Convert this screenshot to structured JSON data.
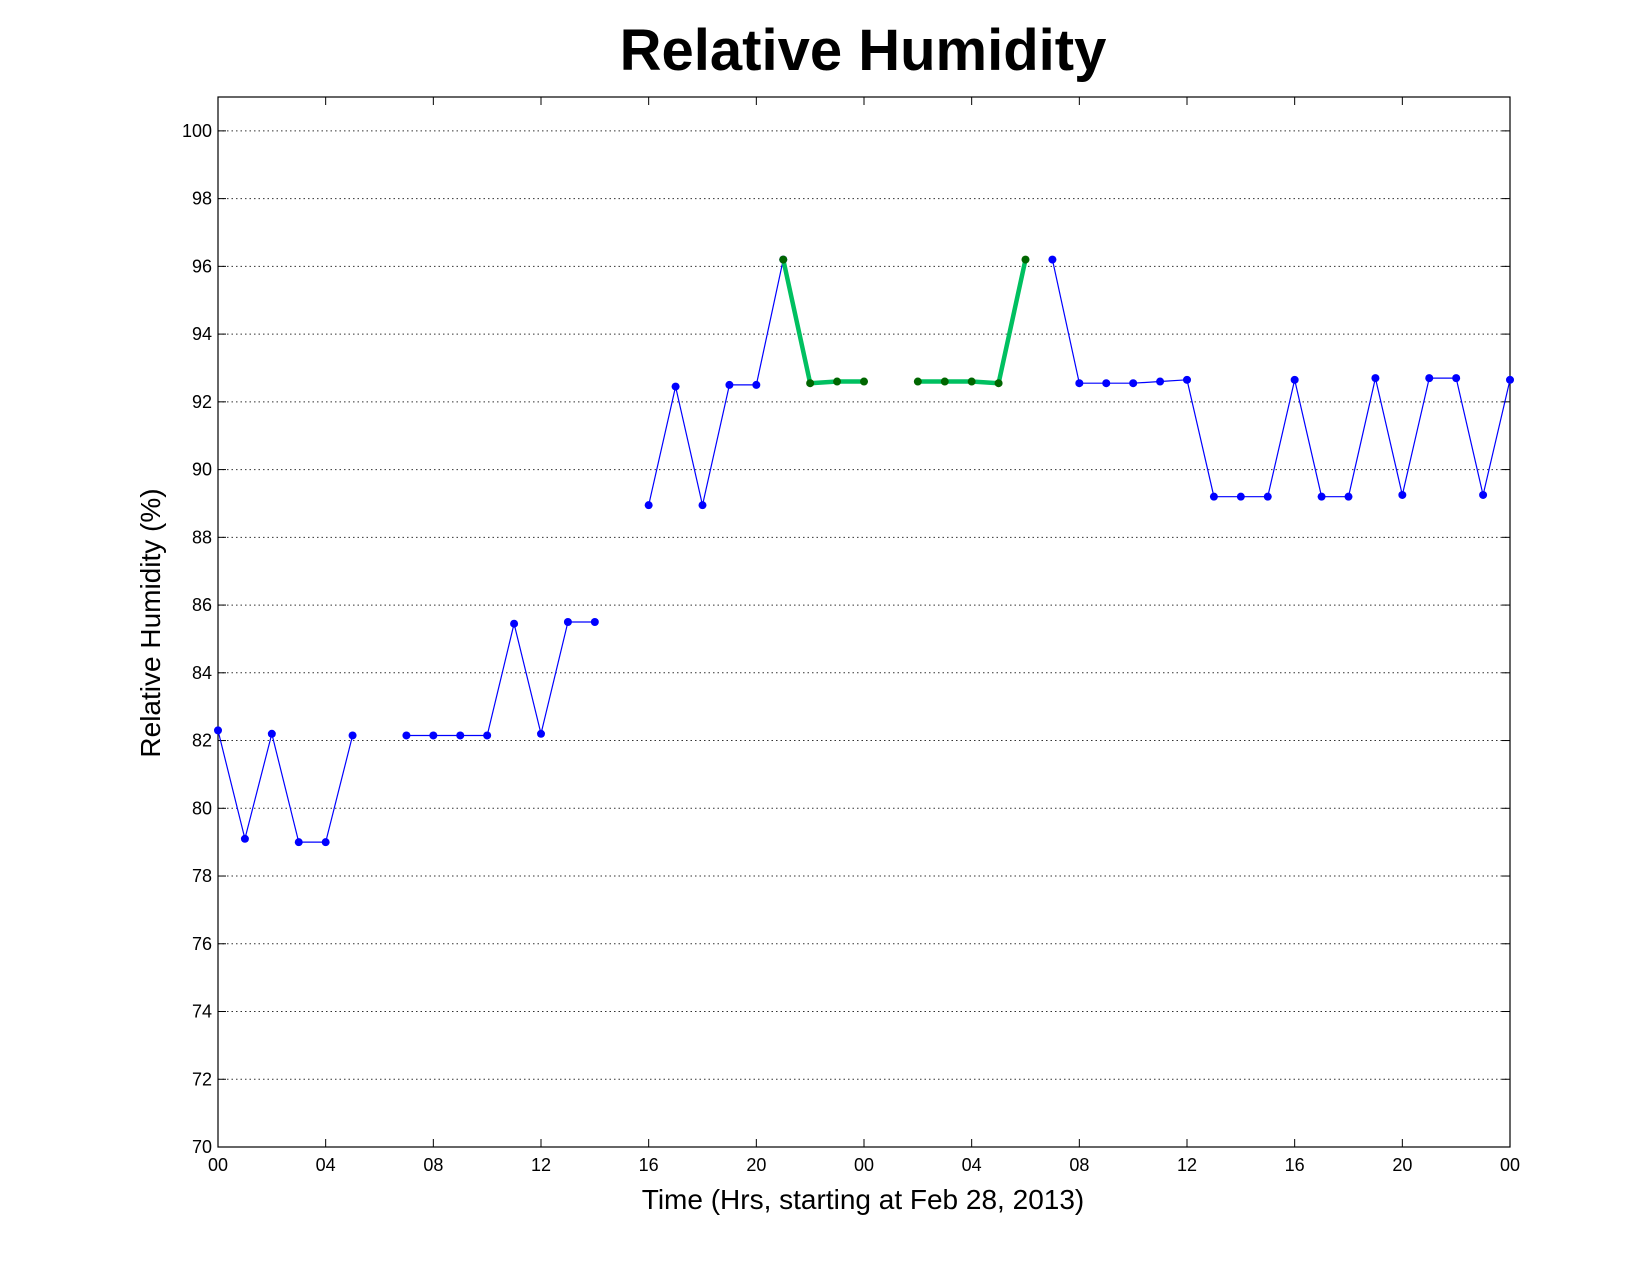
{
  "chart_data": {
    "type": "line",
    "title": "Relative Humidity",
    "xlabel": "Time (Hrs, starting at Feb 28, 2013)",
    "ylabel": "Relative Humidity (%)",
    "xlim": [
      0,
      48
    ],
    "ylim": [
      70,
      101
    ],
    "grid": true,
    "x_ticks": [
      0,
      4,
      8,
      12,
      16,
      20,
      24,
      28,
      32,
      36,
      40,
      44,
      48
    ],
    "x_tick_labels": [
      "00",
      "04",
      "08",
      "12",
      "16",
      "20",
      "00",
      "04",
      "08",
      "12",
      "16",
      "20",
      "00"
    ],
    "y_ticks": [
      70,
      72,
      74,
      76,
      78,
      80,
      82,
      84,
      86,
      88,
      90,
      92,
      94,
      96,
      98,
      100
    ],
    "y_tick_labels": [
      "70",
      "72",
      "74",
      "76",
      "78",
      "80",
      "82",
      "84",
      "86",
      "88",
      "90",
      "92",
      "94",
      "96",
      "98",
      "100"
    ],
    "colors": {
      "primary": "#0000ff",
      "highlight_line": "#00c060",
      "highlight_marker": "#006600"
    },
    "series": [
      {
        "style": "primary",
        "segments": [
          [
            [
              0,
              82.3
            ],
            [
              1,
              79.1
            ],
            [
              2,
              82.2
            ],
            [
              3,
              79.0
            ],
            [
              4,
              79.0
            ],
            [
              5,
              82.15
            ]
          ],
          [
            [
              7,
              82.15
            ],
            [
              8,
              82.15
            ],
            [
              9,
              82.15
            ],
            [
              10,
              82.15
            ],
            [
              11,
              85.45
            ],
            [
              12,
              82.2
            ],
            [
              13,
              85.5
            ],
            [
              14,
              85.5
            ]
          ],
          [
            [
              16,
              88.95
            ],
            [
              17,
              92.45
            ],
            [
              18,
              88.95
            ],
            [
              19,
              92.5
            ],
            [
              20,
              92.5
            ],
            [
              21,
              96.2
            ]
          ],
          [
            [
              31,
              96.2
            ],
            [
              32,
              92.55
            ],
            [
              33,
              92.55
            ],
            [
              34,
              92.55
            ],
            [
              35,
              92.6
            ],
            [
              36,
              92.65
            ],
            [
              37,
              89.2
            ],
            [
              38,
              89.2
            ],
            [
              39,
              89.2
            ],
            [
              40,
              92.65
            ],
            [
              41,
              89.2
            ],
            [
              42,
              89.2
            ],
            [
              43,
              92.7
            ],
            [
              44,
              89.25
            ],
            [
              45,
              92.7
            ],
            [
              46,
              92.7
            ],
            [
              47,
              89.25
            ],
            [
              48,
              92.65
            ]
          ]
        ]
      },
      {
        "style": "highlight",
        "segments": [
          [
            [
              21,
              96.2
            ],
            [
              22,
              92.55
            ],
            [
              23,
              92.6
            ],
            [
              24,
              92.6
            ]
          ],
          [
            [
              26,
              92.6
            ],
            [
              27,
              92.6
            ],
            [
              28,
              92.6
            ],
            [
              29,
              92.55
            ],
            [
              30,
              96.2
            ]
          ]
        ]
      }
    ]
  }
}
